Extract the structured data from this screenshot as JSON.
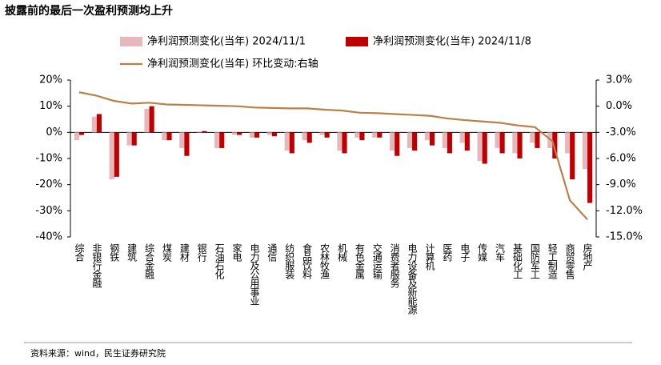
{
  "chart_data": {
    "type": "bar",
    "title": "披露前的最后一次盈利预测均上升",
    "source": "资料来源：wind，民生证券研究院",
    "categories": [
      "综合",
      "非银行金融",
      "钢铁",
      "建筑",
      "综合金融",
      "煤炭",
      "建材",
      "银行",
      "石油石化",
      "家电",
      "电力及公用事业",
      "通信",
      "纺织服装",
      "食品饮料",
      "农林牧渔",
      "机械",
      "有色金属",
      "交通运输",
      "消费者服务",
      "电力设备及新能源",
      "计算机",
      "医药",
      "电子",
      "传媒",
      "汽车",
      "基础化工",
      "国防军工",
      "轻工制造",
      "商贸零售",
      "房地产"
    ],
    "series": [
      {
        "name": "净利润预测变化(当年) 2024/11/1",
        "type": "bar",
        "color": "#e6b8bb",
        "values": [
          -3,
          6,
          -18,
          -5,
          9,
          -3,
          -6,
          0.3,
          -6,
          -1,
          -2,
          -1,
          -7,
          -3,
          -1,
          -7,
          -2,
          -2,
          -7,
          -6,
          -3,
          -6,
          -4,
          -11,
          -6,
          -8,
          -4,
          -6,
          -8,
          -14
        ]
      },
      {
        "name": "净利润预测变化(当年) 2024/11/8",
        "type": "bar",
        "color": "#c00000",
        "values": [
          -1,
          7,
          -17,
          -5,
          10,
          -3,
          -9,
          0.5,
          -6,
          -1,
          -2,
          -1.5,
          -8,
          -4,
          -2,
          -8,
          -3,
          -2,
          -9,
          -7,
          -5,
          -8,
          -7,
          -12,
          -8,
          -10,
          -6,
          -10,
          -18,
          -27
        ]
      },
      {
        "name": "净利润预测变化(当年) 环比变动:右轴",
        "type": "line",
        "axis": "y2",
        "color": "#b9804a",
        "values": [
          1.6,
          1.2,
          0.6,
          0.3,
          0.4,
          0.2,
          0.15,
          0.1,
          0.05,
          0,
          -0.15,
          -0.2,
          -0.25,
          -0.25,
          -0.4,
          -0.5,
          -0.75,
          -0.8,
          -0.9,
          -1,
          -1.1,
          -1.4,
          -1.6,
          -1.75,
          -1.9,
          -2.2,
          -2.4,
          -4,
          -10.8,
          -13
        ]
      }
    ],
    "ylim": [
      -40,
      20
    ],
    "yticks": [
      {
        "value": -40,
        "label": "-40%"
      },
      {
        "value": -30,
        "label": "-30%"
      },
      {
        "value": -20,
        "label": "-20%"
      },
      {
        "value": -10,
        "label": "-10%"
      },
      {
        "value": 0,
        "label": "0%"
      },
      {
        "value": 10,
        "label": "10%"
      },
      {
        "value": 20,
        "label": "20%"
      }
    ],
    "y2lim": [
      -15,
      3
    ],
    "y2ticks": [
      {
        "value": -15,
        "label": "-15.0%"
      },
      {
        "value": -12,
        "label": "-12.0%"
      },
      {
        "value": -9,
        "label": "-9.0%"
      },
      {
        "value": -6,
        "label": "-6.0%"
      },
      {
        "value": -3,
        "label": "-3.0%"
      },
      {
        "value": 0,
        "label": "0.0%"
      },
      {
        "value": 3,
        "label": "3.0%"
      }
    ]
  }
}
